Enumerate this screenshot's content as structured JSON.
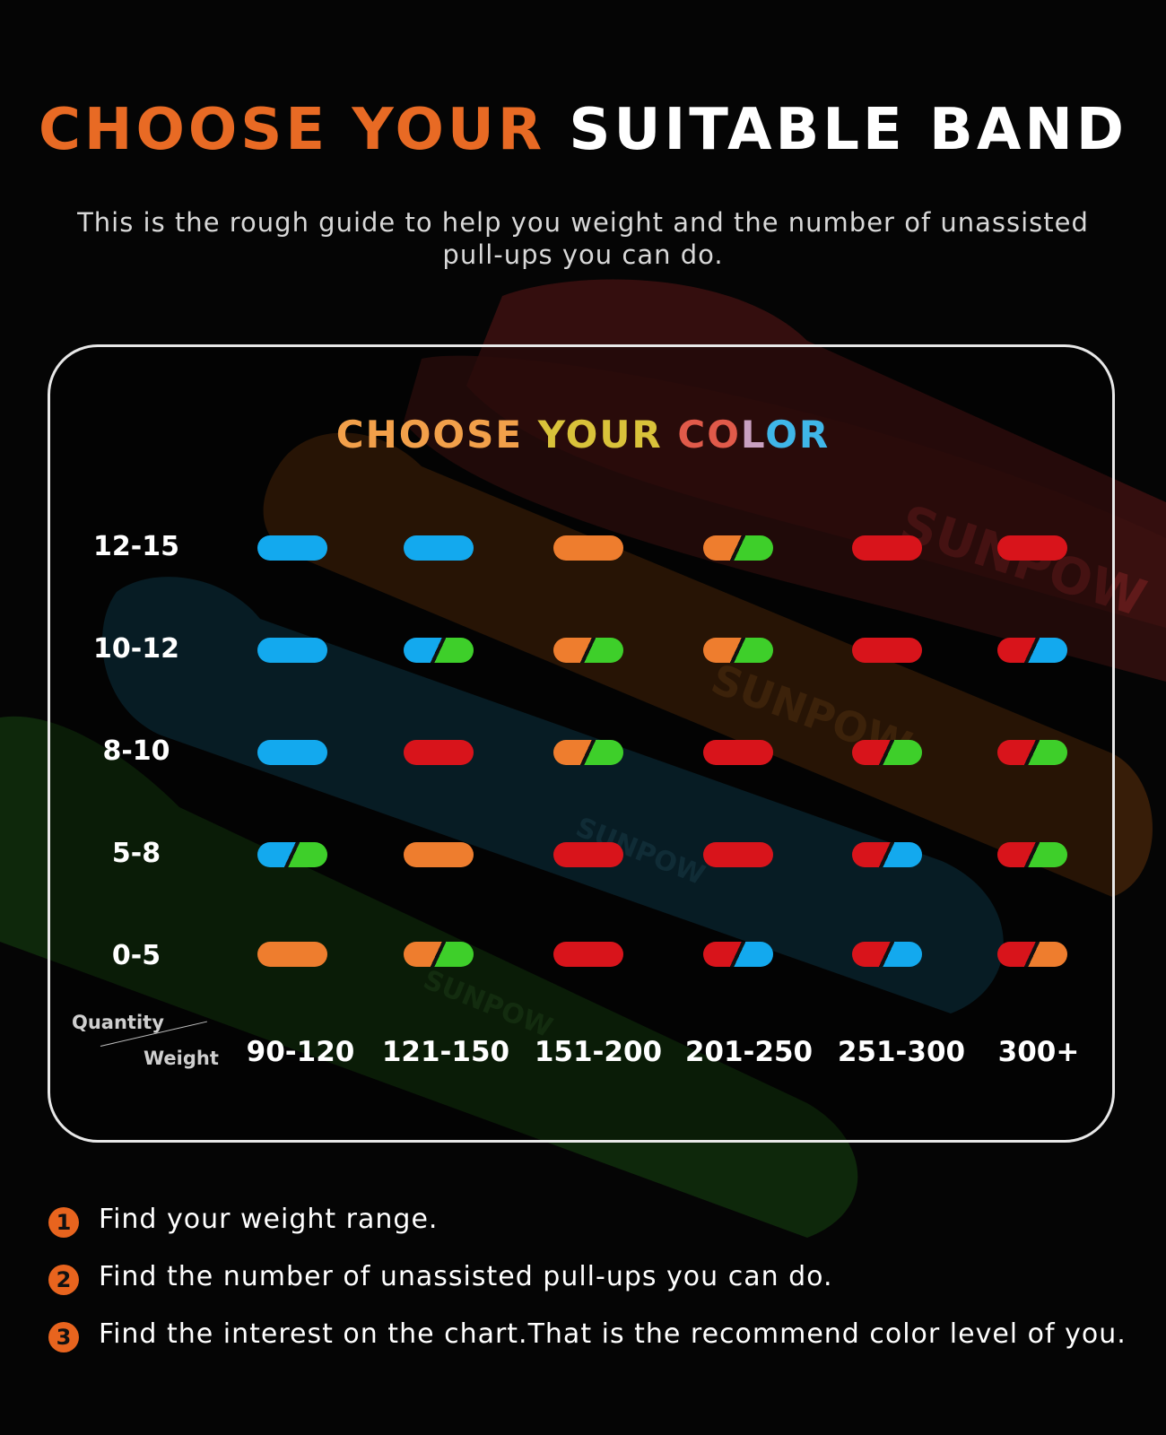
{
  "title": {
    "accent": "CHOOSE YOUR",
    "main": "SUITABLE BAND"
  },
  "subtitle": {
    "line1": "This is the rough guide to help you weight  and the number of unassisted",
    "line2": "pull-ups you can do."
  },
  "chart": {
    "title_parts": [
      "CHOOSE ",
      "YOUR ",
      "CO",
      "L",
      "OR"
    ],
    "rows": [
      "12-15",
      "10-12",
      "8-10",
      "5-8",
      "0-5"
    ],
    "columns": [
      "90-120",
      "121-150",
      "151-200",
      "201-250",
      "251-300",
      "300+"
    ],
    "axis_quantity": "Quantity",
    "axis_weight": "Weight",
    "colors": {
      "blue": "#13a9ee",
      "green": "#3ecf2a",
      "orange": "#ee7d2e",
      "red": "#d8141b"
    },
    "grid": [
      [
        [
          "blue"
        ],
        [
          "blue"
        ],
        [
          "orange"
        ],
        [
          "orange",
          "green"
        ],
        [
          "red"
        ],
        [
          "red"
        ]
      ],
      [
        [
          "blue"
        ],
        [
          "blue",
          "green"
        ],
        [
          "orange",
          "green"
        ],
        [
          "orange",
          "green"
        ],
        [
          "red"
        ],
        [
          "red",
          "blue"
        ]
      ],
      [
        [
          "blue"
        ],
        [
          "red"
        ],
        [
          "orange",
          "green"
        ],
        [
          "red"
        ],
        [
          "red",
          "green"
        ],
        [
          "red",
          "green"
        ]
      ],
      [
        [
          "blue",
          "green"
        ],
        [
          "orange"
        ],
        [
          "red"
        ],
        [
          "red"
        ],
        [
          "red",
          "blue"
        ],
        [
          "red",
          "green"
        ]
      ],
      [
        [
          "orange"
        ],
        [
          "orange",
          "green"
        ],
        [
          "red"
        ],
        [
          "red",
          "blue"
        ],
        [
          "red",
          "blue"
        ],
        [
          "red",
          "orange"
        ]
      ]
    ]
  },
  "steps": [
    {
      "num": "1",
      "text": "Find your weight range."
    },
    {
      "num": "2",
      "text": "Find the number of unassisted pull-ups you can do."
    },
    {
      "num": "3",
      "text": "Find the interest on the chart.That is the recommend color level of you."
    }
  ],
  "background": {
    "band_colors": [
      "#3a0f10",
      "#3a1f08",
      "#0c2a36",
      "#0f2a0c"
    ],
    "band_text": "SUNPOW"
  }
}
